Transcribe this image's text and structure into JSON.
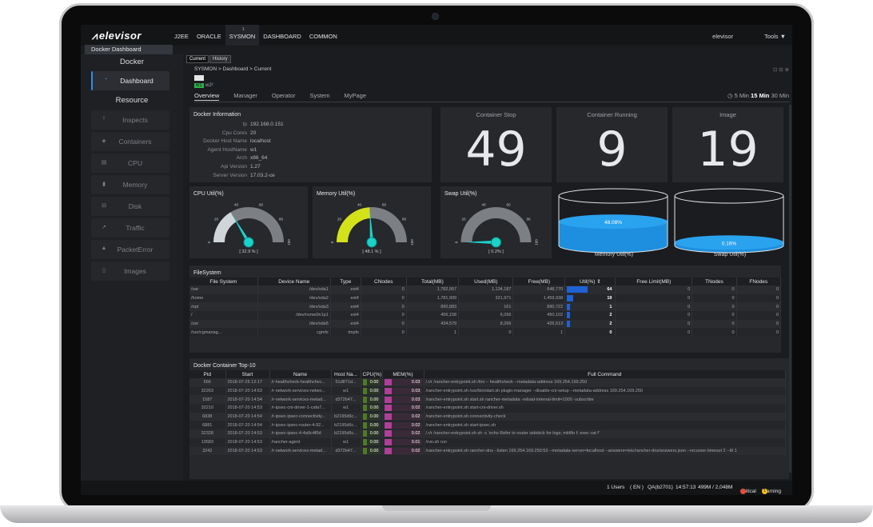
{
  "app": {
    "logo": "elevisor",
    "menu": [
      "J2EE",
      "ORACLE",
      "SYSMON",
      "DASHBOARD",
      "COMMON"
    ],
    "menu_badge": "1",
    "user": "elevisor",
    "tools": "Tools ▼",
    "subtitle": "Docker Dashboard"
  },
  "sidebar": {
    "section_docker": "Docker",
    "dashboard": "Dashboard",
    "section_resource": "Resource",
    "items": [
      {
        "label": "Inspects",
        "icon": "!"
      },
      {
        "label": "Containers",
        "icon": "◈"
      },
      {
        "label": "CPU",
        "icon": "▤"
      },
      {
        "label": "Memory",
        "icon": "▮"
      },
      {
        "label": "Disk",
        "icon": "⊟"
      },
      {
        "label": "Traffic",
        "icon": "↗"
      },
      {
        "label": "PacketError",
        "icon": "▲"
      },
      {
        "label": "Images",
        "icon": "▯"
      }
    ]
  },
  "header": {
    "tab_current": "Current",
    "tab_history": "History",
    "breadcrumb": "SYSMON > Dashboard > Current",
    "crumb_tools": "⊡ ⊟ ⊕",
    "agent_tag": "w1",
    "agent_tag2": "w2²",
    "subtabs": [
      "Overview",
      "Manager",
      "Operator",
      "System",
      "MyPage"
    ],
    "range_prefix": "◷ 5 Min",
    "range_active": "15 Min",
    "range_suffix": "30 Min"
  },
  "docker_info": {
    "title": "Docker Information",
    "rows": [
      {
        "k": "Ip",
        "v": "192.168.0.151"
      },
      {
        "k": "Cpu Cores",
        "v": "20"
      },
      {
        "k": "Docker Host Name",
        "v": "localhost"
      },
      {
        "k": "Agent HostName",
        "v": "w1"
      },
      {
        "k": "Arch",
        "v": "x86_64"
      },
      {
        "k": "Api Version",
        "v": "1.27"
      },
      {
        "k": "Server Version",
        "v": "17.03.2-ce"
      }
    ]
  },
  "stats": [
    {
      "title": "Container Stop",
      "value": "49"
    },
    {
      "title": "Container Running",
      "value": "9"
    },
    {
      "title": "Image",
      "value": "19"
    }
  ],
  "gauges": [
    {
      "title": "CPU Util(%)",
      "label": "[ 32.9 % ]",
      "value": 32.9,
      "color": "#cfd5d8"
    },
    {
      "title": "Memory Util(%)",
      "label": "[ 48.1 % ]",
      "value": 48.1,
      "color": "#d4e21a"
    },
    {
      "title": "Swap Util(%)",
      "label": "[ 0.2% ]",
      "value": 0.2,
      "color": "#cfd5d8"
    }
  ],
  "gauge_ticks": {
    "t0": "0",
    "t20": "20",
    "t40": "40",
    "t60": "60",
    "t80": "80",
    "t100": "100"
  },
  "cylinders": [
    {
      "label": "Memory Util(%)",
      "value_text": "48.08%",
      "value": 48.08
    },
    {
      "label": "Swap Util(%)",
      "value_text": "0.16%",
      "value": 0.16
    }
  ],
  "filesystem": {
    "title": "FileSystem",
    "columns": [
      "File System",
      "Device Name",
      "Type",
      "CNodes",
      "Total(MB)",
      "Used(MB)",
      "Free(MB)",
      "Util(%) ⇕",
      "Free Limit(MB)",
      "TNodes",
      "FNodes"
    ],
    "rows": [
      [
        "/var",
        "/dev/sda1",
        "ext4",
        "0",
        "1,782,957",
        "1,134,187",
        "648,770",
        "64",
        "0",
        "0",
        "0"
      ],
      [
        "/home",
        "/dev/sda2",
        "ext4",
        "0",
        "1,781,909",
        "321,971",
        "1,459,938",
        "19",
        "0",
        "0",
        "0"
      ],
      [
        "/opt",
        "/dev/sda3",
        "ext4",
        "0",
        "890,883",
        "161",
        "890,722",
        "1",
        "0",
        "0",
        "0"
      ],
      [
        "/",
        "/dev/nvme0n1p1",
        "ext4",
        "0",
        "456,158",
        "6,056",
        "450,102",
        "2",
        "0",
        "0",
        "0"
      ],
      [
        "/usr",
        "/dev/sda5",
        "ext4",
        "0",
        "434,579",
        "8,266",
        "426,513",
        "2",
        "0",
        "0",
        "0"
      ],
      [
        "/run/cgmanag...",
        "cgmfs",
        "tmpfs",
        "0",
        "1",
        "0",
        "1",
        "0",
        "0",
        "0",
        "0"
      ]
    ]
  },
  "top10": {
    "title": "Docker Container Top-10",
    "columns": [
      "Pid",
      "Start",
      "Name",
      "Host Na...",
      "CPU(%)",
      "MEM(%)",
      "Full Command"
    ],
    "rows": [
      [
        "666",
        "2018-07-25 12:17",
        "/r-healthcheck-healthchec...",
        "51d871d...",
        "0.00",
        "0.03",
        "/.r/r /rancher-entrypoint.sh /tini -- healthcheck --metadata-address 169.254.169.250"
      ],
      [
        "32263",
        "2018-07-20 14:53",
        "/r-network-services-netwo...",
        "w1",
        "0.00",
        "0.03",
        "/rancher-entrypoint.sh /usr/bin/start.sh plugin-manager --disable-cni-setup --metadata-address 169.254.169.250"
      ],
      [
        "1587",
        "2018-07-20 14:54",
        "/r-network-services-metad...",
        "d372b47...",
        "0.00",
        "0.03",
        "/rancher-entrypoint.sh start.sh rancher-metadata -reload-interval-limit=1000 -subscribe"
      ],
      [
        "32210",
        "2018-07-20 14:53",
        "/r-ipsec-cni-driver-1-cafa7...",
        "w1",
        "0.00",
        "0.02",
        "/rancher-entrypoint.sh start-cni-driver.sh"
      ],
      [
        "6838",
        "2018-07-20 14:54",
        "/r-ipsec-ipsec-connectivity...",
        "b2195d6c...",
        "0.00",
        "0.02",
        "/rancher-entrypoint.sh connectivity-check"
      ],
      [
        "6881",
        "2018-07-20 14:54",
        "/r-ipsec-ipsec-router-4-92...",
        "b2195d6c...",
        "0.00",
        "0.02",
        "/rancher-entrypoint.sh start-ipsec.sh"
      ],
      [
        "32328",
        "2018-07-20 14:53",
        "/r-ipsec-ipsec-4-4a9c4f0d",
        "b2195d6c...",
        "0.00",
        "0.02",
        "/.r/r /rancher-entrypoint.sh sh -c 'echo Refer to router sidekick for logs; mkfifo f; exec cat f'"
      ],
      [
        "13683",
        "2018-07-20 14:53",
        "/rancher-agent",
        "w1",
        "0.00",
        "0.01",
        "/run.sh run"
      ],
      [
        "3242",
        "2018-07-20 14:53",
        "/r-network-services-metad...",
        "d372b47...",
        "0.00",
        "0.02",
        "/rancher-entrypoint.sh rancher-dns --listen 169.254.169.250:53 --metadata-server=localhost --answers=/etc/rancher-dns/answers.json --recurser-timeout 2 --ttl 1"
      ]
    ]
  },
  "status": {
    "users": "1 Users",
    "lang": "( EN )",
    "qa": "QA(b2701)",
    "time": "14:57:13",
    "mem": "499M / 2,048M",
    "critical": "Critical",
    "critical_count": "",
    "warning": "Warning",
    "warning_count": "1"
  },
  "colors": {
    "accent": "#2c8ff0",
    "util_bar": "#1e62d6",
    "cpu_bar": "#4d7a26",
    "mem_bar": "#b03e9a",
    "cylinder": "#1e8fde"
  }
}
